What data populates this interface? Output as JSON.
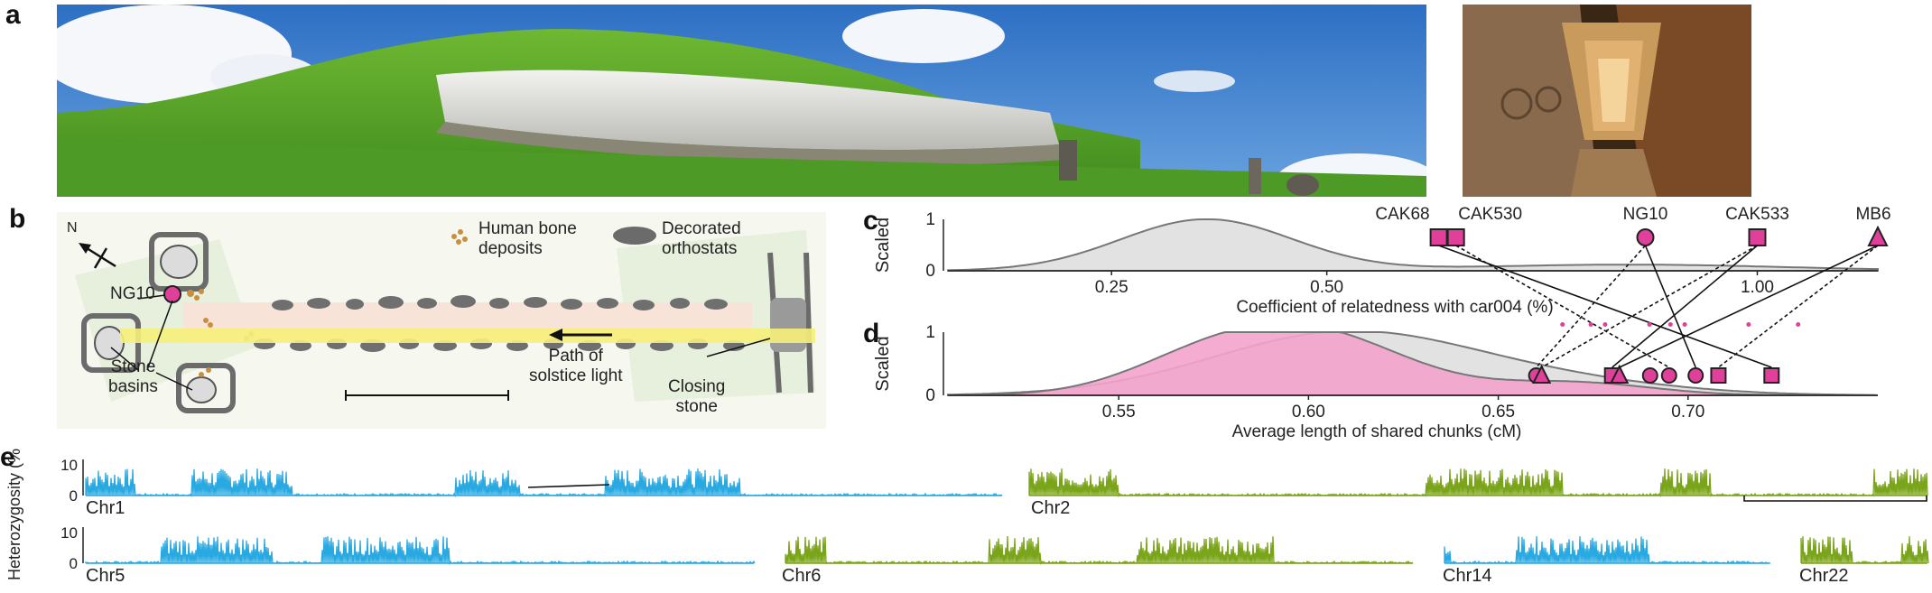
{
  "panels": {
    "a": "a",
    "b": "b",
    "c": "c",
    "d": "d",
    "e": "e"
  },
  "map_labels": {
    "north": "N",
    "ng10": "NG10",
    "bone_deposits": "Human bone\ndeposits",
    "decorated_orthostats": "Decorated\northostats",
    "stone_basins": "Stone\nbasins",
    "solstice_path": "Path of\nsolstice light",
    "closing_stone": "Closing\nstone"
  },
  "chart_data": [
    {
      "id": "c",
      "type": "area",
      "ylabel": "Scaled",
      "xlabel": "Coefficient of relatedness with car004 (%)",
      "x_ticks": [
        0.25,
        0.5,
        1.0
      ],
      "x_tick_labels": [
        "0.25",
        "0.50",
        "1.00"
      ],
      "y_ticks": [
        0,
        1
      ],
      "y_tick_labels": [
        "0",
        "1"
      ],
      "xlim": [
        0.06,
        1.14
      ],
      "ylim": [
        0,
        1
      ],
      "markers": [
        {
          "label": "CAK68",
          "x": 0.63,
          "shape": "square"
        },
        {
          "label": "CAK530",
          "x": 0.65,
          "shape": "square"
        },
        {
          "label": "NG10",
          "x": 0.87,
          "shape": "circle"
        },
        {
          "label": "CAK533",
          "x": 1.0,
          "shape": "square"
        },
        {
          "label": "MB6",
          "x": 1.14,
          "shape": "triangle"
        }
      ]
    },
    {
      "id": "d",
      "type": "area",
      "ylabel": "Scaled",
      "xlabel": "Average length of shared chunks (cM)",
      "x_ticks": [
        0.55,
        0.6,
        0.65,
        0.7
      ],
      "x_tick_labels": [
        "0.55",
        "0.60",
        "0.65",
        "0.70"
      ],
      "y_ticks": [
        0,
        1
      ],
      "y_tick_labels": [
        "0",
        "1"
      ],
      "xlim": [
        0.505,
        0.75
      ],
      "ylim": [
        0,
        1
      ],
      "series": [
        {
          "fill": "#e2e2e2"
        },
        {
          "fill": "#f4a3cc"
        }
      ],
      "markers": [
        {
          "x": 0.66,
          "shape": "circle"
        },
        {
          "x": 0.66,
          "shape": "triangle"
        },
        {
          "x": 0.68,
          "shape": "square"
        },
        {
          "x": 0.68,
          "shape": "triangle"
        },
        {
          "x": 0.69,
          "shape": "circle"
        },
        {
          "x": 0.695,
          "shape": "circle"
        },
        {
          "x": 0.702,
          "shape": "circle"
        },
        {
          "x": 0.708,
          "shape": "square"
        },
        {
          "x": 0.722,
          "shape": "square"
        }
      ]
    },
    {
      "id": "e",
      "type": "area",
      "ylabel": "Heterozygosity (%)",
      "y_ticks": [
        0,
        10
      ],
      "y_tick_labels": [
        "0",
        "10"
      ],
      "chromosomes": [
        {
          "label": "Chr1",
          "color": "#29a9e1"
        },
        {
          "label": "Chr2",
          "color": "#7aa419"
        },
        {
          "label": "Chr5",
          "color": "#29a9e1"
        },
        {
          "label": "Chr6",
          "color": "#7aa419"
        },
        {
          "label": "Chr14",
          "color": "#29a9e1"
        },
        {
          "label": "Chr22",
          "color": "#7aa419"
        }
      ]
    }
  ],
  "colors": {
    "magenta": "#e0409a",
    "pink_fill": "#f4a3cc",
    "grey_fill": "#e2e2e2",
    "blue": "#29a9e1",
    "green": "#7aa419",
    "yellow": "#f6f07a"
  }
}
